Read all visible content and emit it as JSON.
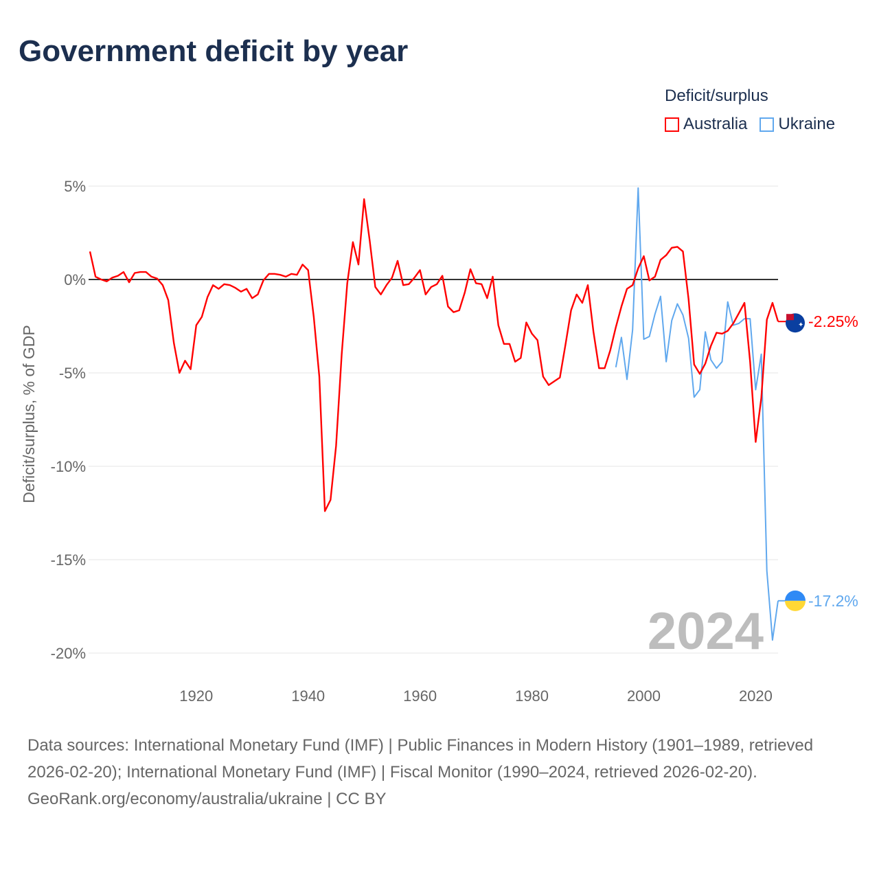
{
  "title": "Government deficit by year",
  "legend": {
    "title": "Deficit/surplus",
    "items": [
      {
        "label": "Australia",
        "color": "#ff0000"
      },
      {
        "label": "Ukraine",
        "color": "#60a8ee"
      }
    ]
  },
  "year_watermark": "2024",
  "footer": {
    "sources": "Data sources: International Monetary Fund (IMF) | Public Finances in Modern History (1901–1989, retrieved 2026-02-20); International Monetary Fund (IMF) | Fiscal Monitor (1990–2024, retrieved 2026-02-20).",
    "credit": "GeoRank.org/economy/australia/ukraine | CC BY"
  },
  "chart_data": {
    "type": "line",
    "title": "Government deficit by year",
    "xlabel": "",
    "ylabel": "Deficit/surplus, % of GDP",
    "xlim": [
      1901,
      2024
    ],
    "ylim": [
      -20,
      5
    ],
    "x_ticks": [
      1920,
      1940,
      1960,
      1980,
      2000,
      2020
    ],
    "x_tick_labels": [
      "1920",
      "1940",
      "1960",
      "1980",
      "2000",
      "2020"
    ],
    "y_ticks": [
      5,
      0,
      -5,
      -10,
      -15,
      -20
    ],
    "y_tick_labels": [
      "5%",
      "0%",
      "-5%",
      "-10%",
      "-15%",
      "-20%"
    ],
    "grid": true,
    "legend_position": "top-right",
    "series": [
      {
        "name": "Australia",
        "color": "#ff0000",
        "start_year": 1901,
        "end_label": "-2.25%",
        "values": [
          1.5,
          0.15,
          0,
          -0.1,
          0.1,
          0.2,
          0.4,
          -0.15,
          0.35,
          0.4,
          0.4,
          0.15,
          0.05,
          -0.3,
          -1.1,
          -3.4,
          -5.0,
          -4.35,
          -4.8,
          -2.45,
          -2.0,
          -0.95,
          -0.3,
          -0.5,
          -0.25,
          -0.3,
          -0.45,
          -0.65,
          -0.5,
          -1.0,
          -0.8,
          -0.05,
          0.3,
          0.3,
          0.25,
          0.15,
          0.3,
          0.25,
          0.8,
          0.5,
          -2.0,
          -5.2,
          -12.4,
          -11.8,
          -8.9,
          -4.0,
          -0.2,
          2.0,
          0.8,
          4.3,
          2.1,
          -0.4,
          -0.8,
          -0.3,
          0.1,
          1.0,
          -0.3,
          -0.25,
          0.1,
          0.5,
          -0.8,
          -0.4,
          -0.25,
          0.2,
          -1.45,
          -1.75,
          -1.65,
          -0.7,
          0.55,
          -0.2,
          -0.25,
          -1.0,
          0.15,
          -2.45,
          -3.45,
          -3.45,
          -4.4,
          -4.2,
          -2.3,
          -2.9,
          -3.25,
          -5.2,
          -5.65,
          -5.45,
          -5.25,
          -3.5,
          -1.65,
          -0.8,
          -1.25,
          -0.3,
          -2.8,
          -4.75,
          -4.75,
          -3.8,
          -2.55,
          -1.45,
          -0.5,
          -0.3,
          0.6,
          1.25,
          -0.05,
          0.15,
          1.05,
          1.3,
          1.7,
          1.75,
          1.5,
          -1.05,
          -4.55,
          -5.05,
          -4.5,
          -3.55,
          -2.85,
          -2.9,
          -2.75,
          -2.35,
          -1.8,
          -1.25,
          -4.4,
          -8.7,
          -6.35,
          -2.15,
          -1.25,
          -2.25
        ]
      },
      {
        "name": "Ukraine",
        "color": "#60a8ee",
        "start_year": 1995,
        "end_label": "-17.2%",
        "values": [
          -4.7,
          -3.1,
          -5.35,
          -2.7,
          4.9,
          -3.2,
          -3.05,
          -1.85,
          -0.9,
          -4.4,
          -2.2,
          -1.3,
          -1.9,
          -3.15,
          -6.3,
          -5.9,
          -2.8,
          -4.3,
          -4.75,
          -4.4,
          -1.2,
          -2.45,
          -2.35,
          -2.1,
          -2.1,
          -5.9,
          -4.0,
          -15.6,
          -19.3,
          -17.2
        ]
      }
    ]
  }
}
